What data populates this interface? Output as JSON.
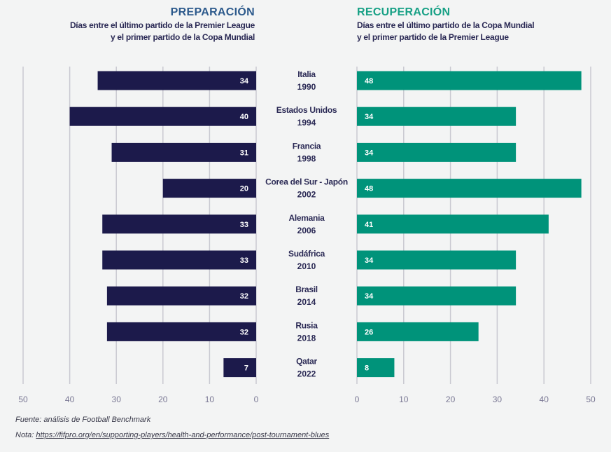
{
  "header": {
    "left": {
      "title": "PREPARACIÓN",
      "subtitle_line1": "Días entre el último partido de la Premier League",
      "subtitle_line2": "y el primer partido de la Copa Mundial"
    },
    "right": {
      "title": "RECUPERACIÓN",
      "subtitle_line1": "Días entre el último partido de la Copa Mundial",
      "subtitle_line2": "y el primer partido de la Premier League"
    }
  },
  "footer": {
    "source": "Fuente: análisis de Football Benchmark",
    "note_label": "Nota:",
    "note_link": "https://fifpro.org/en/supporting-players/health-and-performance/post-tournament-blues"
  },
  "colors": {
    "preparation": "#1c1a4b",
    "recovery": "#00937a",
    "grid": "#c9c9d1",
    "axis_text": "#7a7894",
    "category_text": "#2b2a55"
  },
  "chart_data": {
    "type": "bar",
    "orientation": "horizontal-butterfly",
    "categories": [
      {
        "country": "Italia",
        "year": "1990"
      },
      {
        "country": "Estados Unidos",
        "year": "1994"
      },
      {
        "country": "Francia",
        "year": "1998"
      },
      {
        "country": "Corea del Sur - Japón",
        "year": "2002"
      },
      {
        "country": "Alemania",
        "year": "2006"
      },
      {
        "country": "Sudáfrica",
        "year": "2010"
      },
      {
        "country": "Brasil",
        "year": "2014"
      },
      {
        "country": "Rusia",
        "year": "2018"
      },
      {
        "country": "Qatar",
        "year": "2022"
      }
    ],
    "series": [
      {
        "name": "PREPARACIÓN",
        "side": "left",
        "values": [
          34,
          40,
          31,
          20,
          33,
          33,
          32,
          32,
          7
        ]
      },
      {
        "name": "RECUPERACIÓN",
        "side": "right",
        "values": [
          48,
          34,
          34,
          48,
          41,
          34,
          34,
          26,
          8
        ]
      }
    ],
    "xlim": [
      0,
      50
    ],
    "ticks": [
      0,
      10,
      20,
      30,
      40,
      50
    ],
    "grid": true,
    "data_labels": true,
    "legend": "none"
  }
}
